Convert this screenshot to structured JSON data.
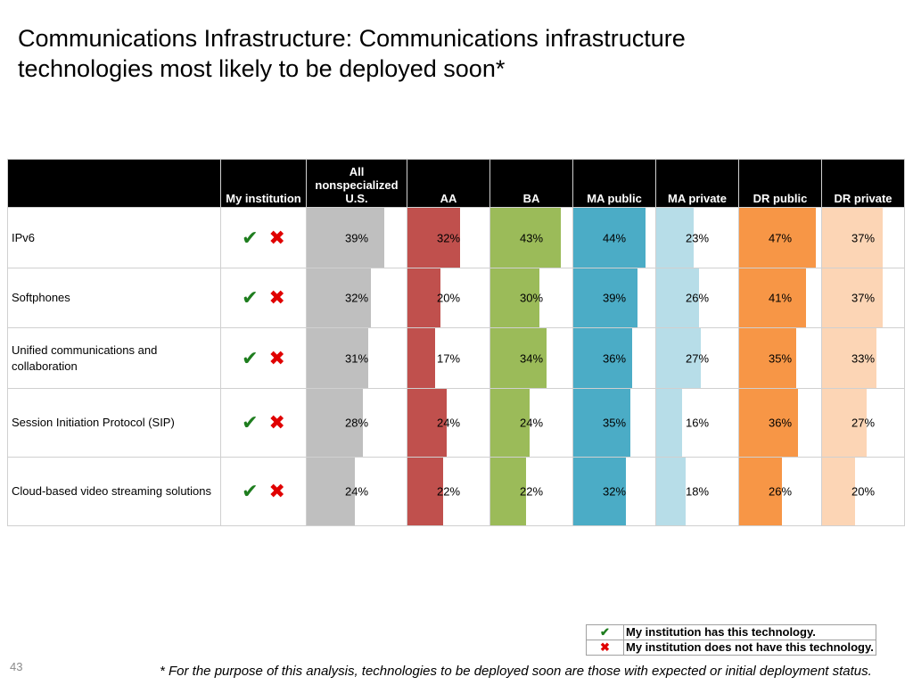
{
  "title": "Communications Infrastructure: Communications infrastructure technologies most likely to be deployed soon*",
  "headers": {
    "category": "",
    "my_institution": "My institution",
    "all_us_line1": "All",
    "all_us_line2": "nonspecialized",
    "all_us_line3": "U.S."
  },
  "chart_data": {
    "type": "bar",
    "categories": [
      "IPv6",
      "Softphones",
      "Unified communications and collaboration",
      "Session Initiation Protocol (SIP)",
      "Cloud-based video streaming solutions"
    ],
    "value_format": "percent",
    "series": [
      {
        "name": "All nonspecialized U.S.",
        "color": "#bfbfbf",
        "values": [
          39,
          32,
          31,
          28,
          24
        ]
      },
      {
        "name": "AA",
        "color": "#c0504d",
        "values": [
          32,
          20,
          17,
          24,
          22
        ]
      },
      {
        "name": "BA",
        "color": "#9bbb59",
        "values": [
          43,
          30,
          34,
          24,
          22
        ]
      },
      {
        "name": "MA public",
        "color": "#4bacc6",
        "values": [
          44,
          39,
          36,
          35,
          32
        ]
      },
      {
        "name": "MA private",
        "color": "#b7dde8",
        "values": [
          23,
          26,
          27,
          16,
          18
        ]
      },
      {
        "name": "DR public",
        "color": "#f79646",
        "values": [
          47,
          41,
          35,
          36,
          26
        ]
      },
      {
        "name": "DR private",
        "color": "#fcd5b5",
        "values": [
          37,
          37,
          33,
          27,
          20
        ]
      }
    ],
    "ylim": [
      0,
      50
    ]
  },
  "icons": {
    "has": "check-icon",
    "not_has": "cross-icon",
    "check_glyph": "✔",
    "cross_glyph": "✖"
  },
  "legend": {
    "has_label": "My institution has this technology.",
    "not_has_label": "My institution does not have this technology."
  },
  "page_number": "43",
  "footnote": "* For the purpose of this analysis, technologies to be deployed soon are those with expected or initial deployment status."
}
